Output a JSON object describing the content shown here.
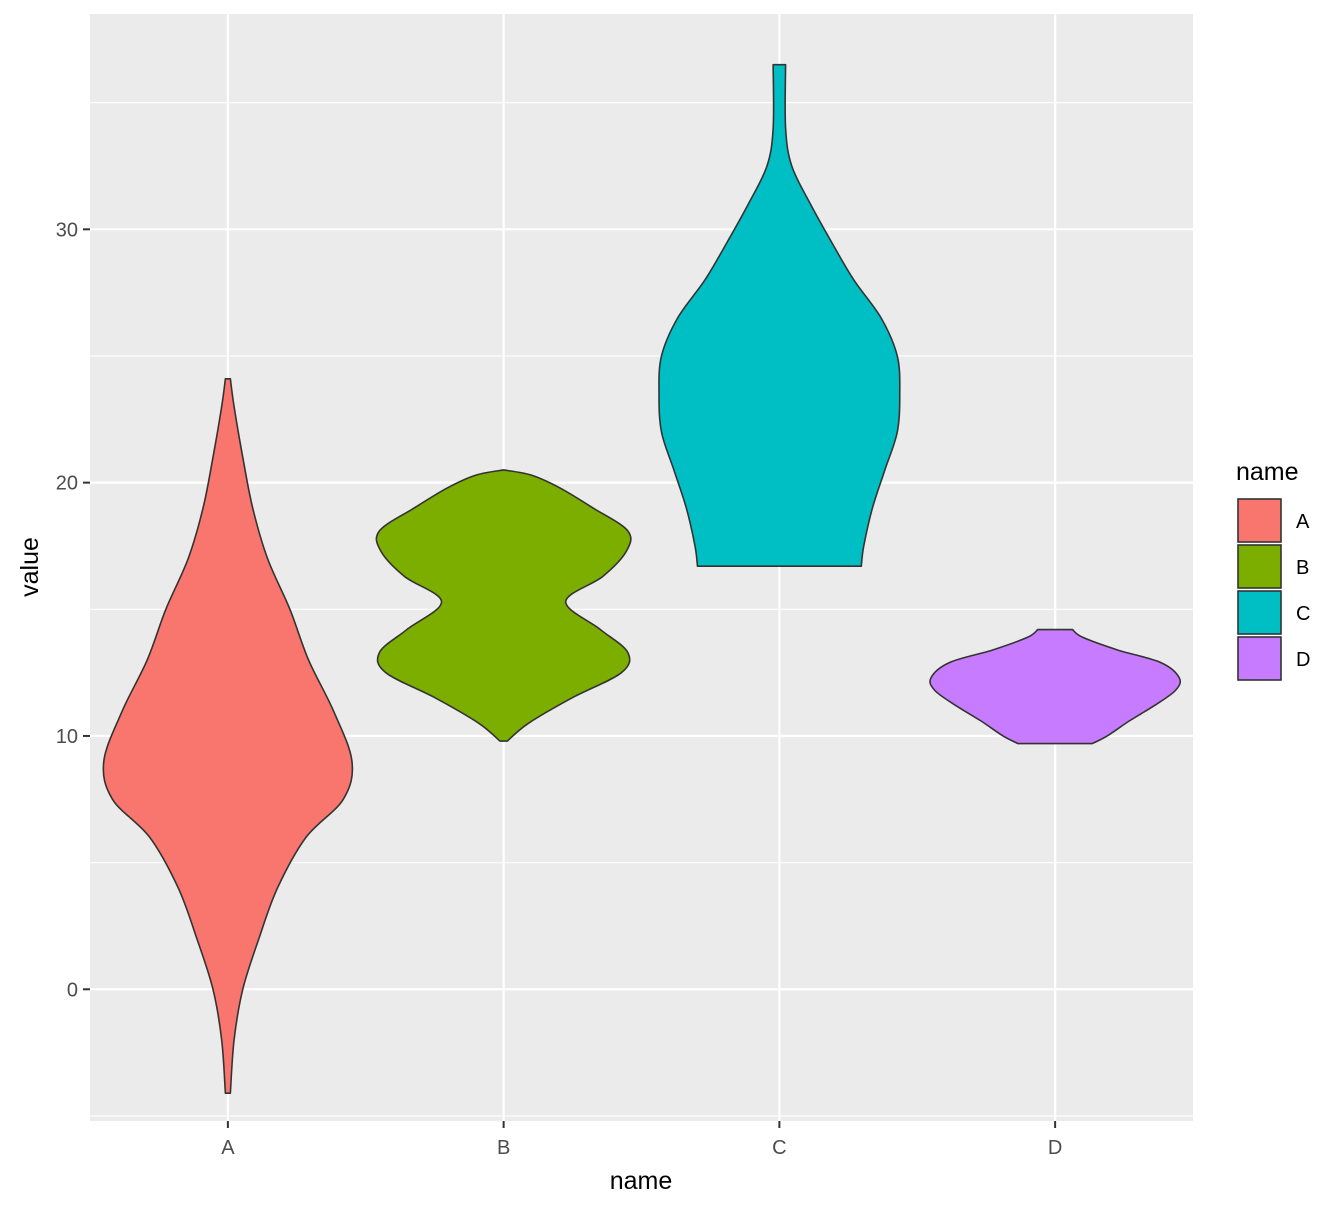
{
  "chart_data": {
    "type": "violin",
    "xlabel": "name",
    "ylabel": "value",
    "categories": [
      "A",
      "B",
      "C",
      "D"
    ],
    "ylim": [
      -5.2,
      38.5
    ],
    "y_ticks": [
      0,
      10,
      20,
      30
    ],
    "y_tick_labels": [
      "0",
      "10",
      "20",
      "30"
    ],
    "grid": true,
    "legend": {
      "title": "name",
      "position": "right",
      "entries": [
        "A",
        "B",
        "C",
        "D"
      ]
    },
    "colors": {
      "A": "#F8766D",
      "B": "#7CAE00",
      "C": "#00BFC4",
      "D": "#C77CFF",
      "panel": "#EBEBEB",
      "grid": "#FFFFFF",
      "outline": "#333333"
    },
    "series": [
      {
        "name": "A",
        "y_range": [
          -4.1,
          24.1
        ],
        "profile": [
          [
            -4.1,
            0.02
          ],
          [
            -2,
            0.05
          ],
          [
            0,
            0.12
          ],
          [
            2,
            0.25
          ],
          [
            4,
            0.4
          ],
          [
            6,
            0.63
          ],
          [
            7.5,
            0.93
          ],
          [
            9,
            1.0
          ],
          [
            11,
            0.85
          ],
          [
            13,
            0.65
          ],
          [
            15,
            0.5
          ],
          [
            17,
            0.32
          ],
          [
            19,
            0.2
          ],
          [
            21,
            0.12
          ],
          [
            23,
            0.05
          ],
          [
            24.1,
            0.02
          ]
        ]
      },
      {
        "name": "B",
        "y_range": [
          9.8,
          20.5
        ],
        "profile": [
          [
            9.8,
            0.03
          ],
          [
            10.5,
            0.2
          ],
          [
            11.5,
            0.55
          ],
          [
            12.5,
            0.95
          ],
          [
            13.3,
            1.0
          ],
          [
            14.2,
            0.78
          ],
          [
            15.3,
            0.5
          ],
          [
            16.3,
            0.8
          ],
          [
            17.3,
            0.99
          ],
          [
            18.1,
            1.0
          ],
          [
            19,
            0.72
          ],
          [
            19.8,
            0.45
          ],
          [
            20.3,
            0.22
          ],
          [
            20.5,
            0.0
          ]
        ]
      },
      {
        "name": "C",
        "y_range": [
          16.7,
          36.5
        ],
        "profile": [
          [
            16.7,
            0.66
          ],
          [
            17.5,
            0.68
          ],
          [
            19,
            0.75
          ],
          [
            20.5,
            0.85
          ],
          [
            22,
            0.95
          ],
          [
            23.5,
            0.97
          ],
          [
            25,
            0.95
          ],
          [
            26.5,
            0.82
          ],
          [
            28,
            0.6
          ],
          [
            29.5,
            0.42
          ],
          [
            31,
            0.25
          ],
          [
            32.5,
            0.1
          ],
          [
            34,
            0.05
          ],
          [
            36.5,
            0.05
          ]
        ]
      },
      {
        "name": "D",
        "y_range": [
          9.7,
          14.2
        ],
        "profile": [
          [
            9.7,
            0.3
          ],
          [
            10.0,
            0.42
          ],
          [
            10.6,
            0.6
          ],
          [
            11.2,
            0.8
          ],
          [
            11.8,
            0.97
          ],
          [
            12.3,
            1.0
          ],
          [
            12.9,
            0.85
          ],
          [
            13.4,
            0.5
          ],
          [
            13.9,
            0.22
          ],
          [
            14.2,
            0.14
          ]
        ]
      }
    ]
  }
}
